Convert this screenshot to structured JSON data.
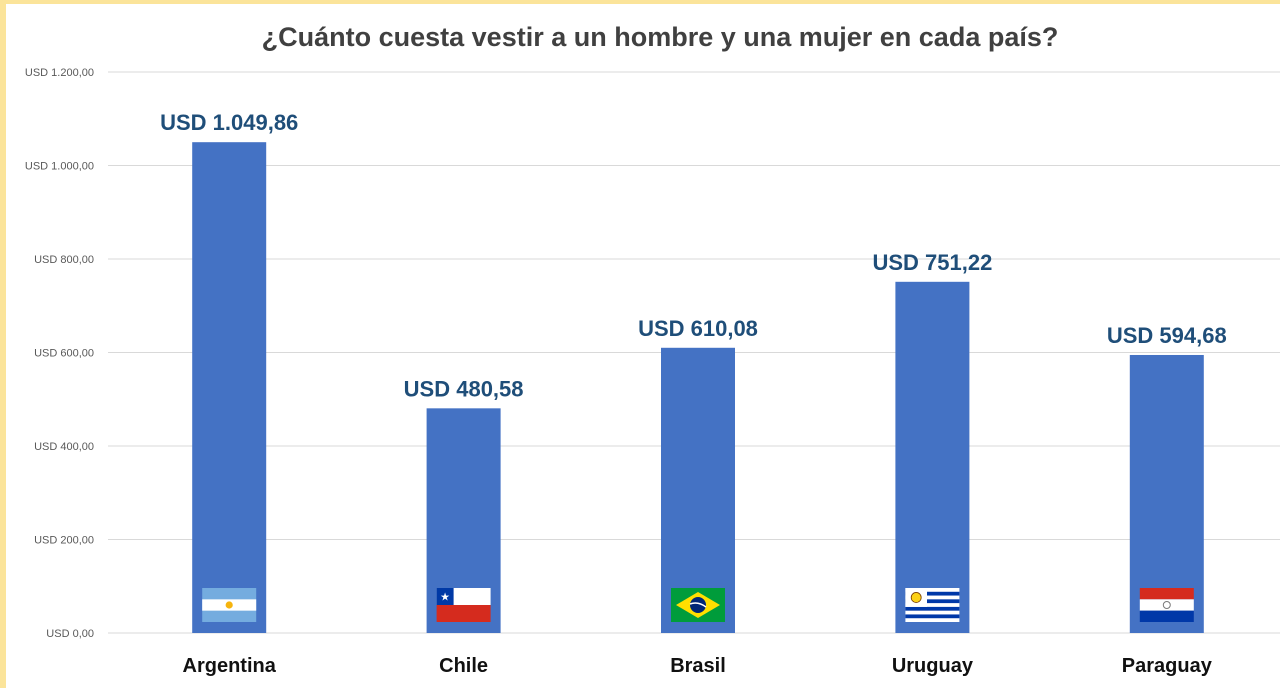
{
  "chart_data": {
    "type": "bar",
    "title": "¿Cuánto cuesta vestir a un hombre y una mujer en cada país?",
    "categories": [
      "Argentina",
      "Chile",
      "Brasil",
      "Uruguay",
      "Paraguay"
    ],
    "values": [
      1049.86,
      480.58,
      610.08,
      751.22,
      594.68
    ],
    "data_labels": [
      "USD 1.049,86",
      "USD 480,58",
      "USD 610,08",
      "USD 751,22",
      "USD 594,68"
    ],
    "y_ticks": [
      0,
      200,
      400,
      600,
      800,
      1000,
      1200
    ],
    "y_tick_labels": [
      "USD 0,00",
      "USD 200,00",
      "USD 400,00",
      "USD 600,00",
      "USD 800,00",
      "USD 1.000,00",
      "USD 1.200,00"
    ],
    "ylim": [
      0,
      1200
    ],
    "xlabel": "",
    "ylabel": "",
    "grid": true,
    "legend": "none",
    "flags": [
      "argentina-flag-icon",
      "chile-flag-icon",
      "brazil-flag-icon",
      "uruguay-flag-icon",
      "paraguay-flag-icon"
    ],
    "colors": {
      "bar": "#4472c4",
      "data_label": "#1f4e79",
      "title": "#404040",
      "grid": "#d9d9d9",
      "frame": "#fbe49a"
    }
  }
}
